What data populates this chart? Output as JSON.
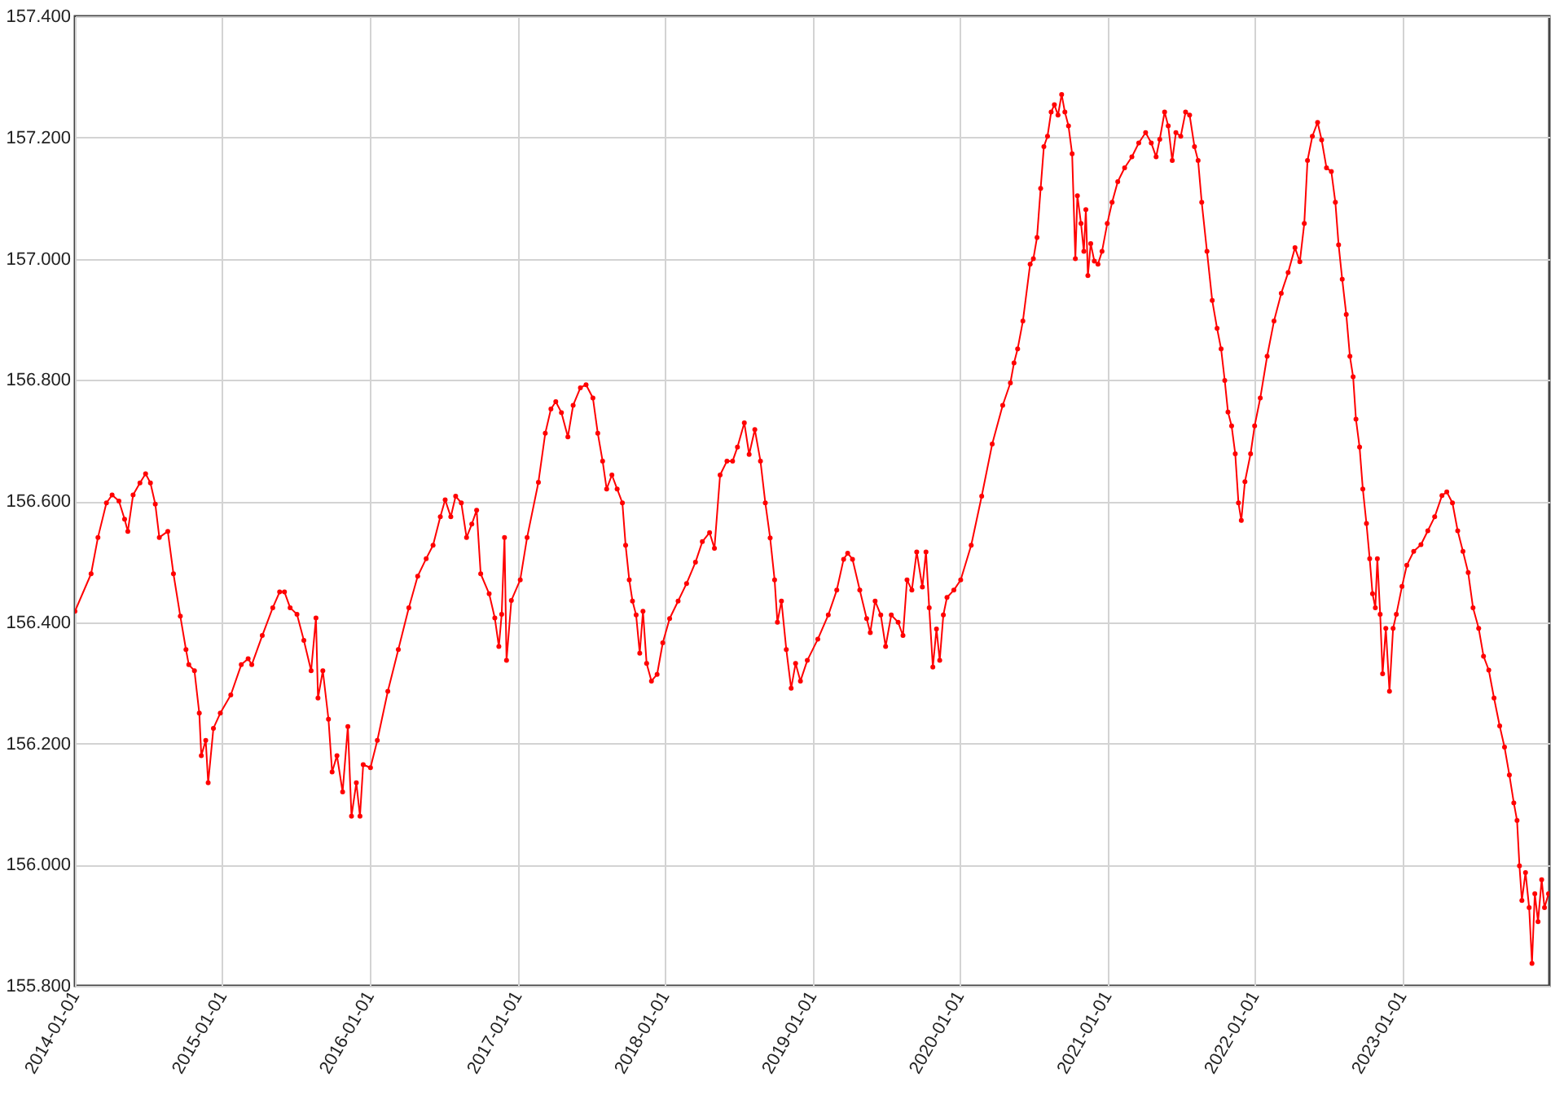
{
  "chart_data": {
    "type": "line",
    "marker": "circle",
    "grid": true,
    "xlim": [
      "2014-01-01",
      "2024-01-01"
    ],
    "xticks": [
      "2014-01-01",
      "2015-01-01",
      "2016-01-01",
      "2017-01-01",
      "2018-01-01",
      "2019-01-01",
      "2020-01-01",
      "2021-01-01",
      "2022-01-01",
      "2023-01-01"
    ],
    "ylim": [
      155.8,
      157.4
    ],
    "yticks": [
      {
        "value": 155.8,
        "label": "155.800"
      },
      {
        "value": 156,
        "label": "156.000"
      },
      {
        "value": 156.2,
        "label": "156.200"
      },
      {
        "value": 156.4,
        "label": "156.400"
      },
      {
        "value": 156.6,
        "label": "156.600"
      },
      {
        "value": 156.8,
        "label": "156.800"
      },
      {
        "value": 157,
        "label": "157.000"
      },
      {
        "value": 157.2,
        "label": "157.200"
      },
      {
        "value": 157.4,
        "label": "157.400"
      }
    ],
    "x": [
      "2014-01-01",
      "2014-02-10",
      "2014-02-27",
      "2014-03-20",
      "2014-04-03",
      "2014-04-20",
      "2014-05-04",
      "2014-05-12",
      "2014-05-25",
      "2014-06-11",
      "2014-06-25",
      "2014-07-07",
      "2014-07-19",
      "2014-07-29",
      "2014-08-19",
      "2014-09-02",
      "2014-09-19",
      "2014-10-03",
      "2014-10-10",
      "2014-10-24",
      "2014-11-05",
      "2014-11-10",
      "2014-11-21",
      "2014-11-27",
      "2014-12-10",
      "2014-12-27",
      "2015-01-22",
      "2015-02-17",
      "2015-03-06",
      "2015-03-15",
      "2015-04-10",
      "2015-05-06",
      "2015-05-23",
      "2015-06-04",
      "2015-06-18",
      "2015-07-05",
      "2015-07-22",
      "2015-08-09",
      "2015-08-21",
      "2015-08-26",
      "2015-09-07",
      "2015-09-21",
      "2015-09-30",
      "2015-10-12",
      "2015-10-26",
      "2015-11-08",
      "2015-11-17",
      "2015-11-29",
      "2015-12-08",
      "2015-12-16",
      "2016-01-03",
      "2016-01-20",
      "2016-02-15",
      "2016-03-12",
      "2016-04-07",
      "2016-04-29",
      "2016-05-20",
      "2016-06-06",
      "2016-06-24",
      "2016-07-06",
      "2016-07-20",
      "2016-08-01",
      "2016-08-15",
      "2016-08-28",
      "2016-09-10",
      "2016-09-22",
      "2016-10-02",
      "2016-10-23",
      "2016-11-06",
      "2016-11-16",
      "2016-11-23",
      "2016-11-30",
      "2016-12-05",
      "2016-12-17",
      "2017-01-08",
      "2017-01-25",
      "2017-02-22",
      "2017-03-11",
      "2017-03-25",
      "2017-04-06",
      "2017-04-20",
      "2017-05-06",
      "2017-05-19",
      "2017-06-06",
      "2017-06-20",
      "2017-07-07",
      "2017-07-19",
      "2017-07-31",
      "2017-08-10",
      "2017-08-23",
      "2017-09-05",
      "2017-09-18",
      "2017-09-26",
      "2017-10-05",
      "2017-10-13",
      "2017-10-22",
      "2017-10-31",
      "2017-11-08",
      "2017-11-17",
      "2017-11-29",
      "2017-12-13",
      "2017-12-27",
      "2018-01-13",
      "2018-02-03",
      "2018-02-24",
      "2018-03-18",
      "2018-04-04",
      "2018-04-22",
      "2018-05-04",
      "2018-05-18",
      "2018-06-04",
      "2018-06-18",
      "2018-06-30",
      "2018-07-17",
      "2018-07-29",
      "2018-08-12",
      "2018-08-26",
      "2018-09-07",
      "2018-09-19",
      "2018-09-30",
      "2018-10-07",
      "2018-10-17",
      "2018-10-29",
      "2018-11-10",
      "2018-11-21",
      "2018-12-03",
      "2018-12-20",
      "2019-01-15",
      "2019-02-10",
      "2019-03-03",
      "2019-03-20",
      "2019-03-30",
      "2019-04-11",
      "2019-04-29",
      "2019-05-16",
      "2019-05-25",
      "2019-06-06",
      "2019-06-20",
      "2019-07-02",
      "2019-07-16",
      "2019-08-02",
      "2019-08-14",
      "2019-08-24",
      "2019-09-05",
      "2019-09-17",
      "2019-10-01",
      "2019-10-10",
      "2019-10-18",
      "2019-10-27",
      "2019-11-05",
      "2019-11-13",
      "2019-11-22",
      "2019-12-01",
      "2019-12-18",
      "2020-01-04",
      "2020-01-30",
      "2020-02-25",
      "2020-03-22",
      "2020-04-17",
      "2020-05-06",
      "2020-05-15",
      "2020-05-24",
      "2020-06-06",
      "2020-06-24",
      "2020-07-02",
      "2020-07-11",
      "2020-07-20",
      "2020-07-28",
      "2020-08-06",
      "2020-08-15",
      "2020-08-23",
      "2020-09-01",
      "2020-09-10",
      "2020-09-18",
      "2020-09-27",
      "2020-10-06",
      "2020-10-14",
      "2020-10-19",
      "2020-10-28",
      "2020-11-04",
      "2020-11-09",
      "2020-11-14",
      "2020-11-21",
      "2020-11-30",
      "2020-12-09",
      "2020-12-19",
      "2021-01-01",
      "2021-01-13",
      "2021-01-27",
      "2021-02-13",
      "2021-03-03",
      "2021-03-20",
      "2021-04-06",
      "2021-04-20",
      "2021-05-02",
      "2021-05-11",
      "2021-05-23",
      "2021-06-01",
      "2021-06-11",
      "2021-06-20",
      "2021-07-02",
      "2021-07-14",
      "2021-07-24",
      "2021-08-05",
      "2021-08-14",
      "2021-08-23",
      "2021-09-05",
      "2021-09-18",
      "2021-09-30",
      "2021-10-10",
      "2021-10-19",
      "2021-10-27",
      "2021-11-05",
      "2021-11-14",
      "2021-11-22",
      "2021-11-29",
      "2021-12-08",
      "2021-12-22",
      "2022-01-01",
      "2022-01-15",
      "2022-02-01",
      "2022-02-18",
      "2022-03-08",
      "2022-03-25",
      "2022-04-11",
      "2022-04-23",
      "2022-05-04",
      "2022-05-12",
      "2022-05-24",
      "2022-06-06",
      "2022-06-16",
      "2022-06-28",
      "2022-07-10",
      "2022-07-20",
      "2022-07-28",
      "2022-08-06",
      "2022-08-16",
      "2022-08-25",
      "2022-09-02",
      "2022-09-09",
      "2022-09-18",
      "2022-09-26",
      "2022-10-05",
      "2022-10-13",
      "2022-10-20",
      "2022-10-27",
      "2022-11-01",
      "2022-11-08",
      "2022-11-14",
      "2022-11-22",
      "2022-12-01",
      "2022-12-10",
      "2022-12-18",
      "2023-01-01",
      "2023-01-13",
      "2023-01-30",
      "2023-02-17",
      "2023-03-06",
      "2023-03-23",
      "2023-04-10",
      "2023-04-22",
      "2023-05-06",
      "2023-05-19",
      "2023-06-01",
      "2023-06-14",
      "2023-06-26",
      "2023-07-10",
      "2023-07-22",
      "2023-08-04",
      "2023-08-17",
      "2023-08-31",
      "2023-09-12",
      "2023-09-24",
      "2023-10-05",
      "2023-10-13",
      "2023-10-19",
      "2023-10-25",
      "2023-11-03",
      "2023-11-12",
      "2023-11-19",
      "2023-11-26",
      "2023-12-04",
      "2023-12-13",
      "2023-12-20",
      "2023-12-30"
    ],
    "series": [
      {
        "color": "#ff0000",
        "values": [
          156.418,
          156.48,
          156.54,
          156.597,
          156.61,
          156.6,
          156.57,
          156.55,
          156.61,
          156.63,
          156.645,
          156.63,
          156.595,
          156.54,
          156.55,
          156.48,
          156.41,
          156.355,
          156.33,
          156.32,
          156.25,
          156.18,
          156.205,
          156.135,
          156.225,
          156.25,
          156.28,
          156.33,
          156.34,
          156.33,
          156.378,
          156.424,
          156.45,
          156.45,
          156.424,
          156.413,
          156.37,
          156.32,
          156.407,
          156.275,
          156.32,
          156.24,
          156.153,
          156.18,
          156.12,
          156.228,
          156.08,
          156.135,
          156.08,
          156.165,
          156.16,
          156.205,
          156.286,
          156.355,
          156.424,
          156.476,
          156.505,
          156.527,
          156.574,
          156.602,
          156.574,
          156.608,
          156.597,
          156.54,
          156.562,
          156.585,
          156.48,
          156.447,
          156.407,
          156.36,
          156.413,
          156.54,
          156.337,
          156.436,
          156.47,
          156.54,
          156.631,
          156.712,
          156.752,
          156.764,
          156.746,
          156.706,
          156.758,
          156.787,
          156.792,
          156.77,
          156.712,
          156.666,
          156.62,
          156.643,
          156.62,
          156.597,
          156.527,
          156.47,
          156.435,
          156.412,
          156.349,
          156.418,
          156.332,
          156.303,
          156.314,
          156.366,
          156.406,
          156.435,
          156.464,
          156.499,
          156.533,
          156.548,
          156.522,
          156.643,
          156.666,
          156.666,
          156.689,
          156.729,
          156.677,
          156.718,
          156.666,
          156.597,
          156.539,
          156.47,
          156.4,
          156.435,
          156.355,
          156.291,
          156.332,
          156.303,
          156.337,
          156.372,
          156.412,
          156.453,
          156.504,
          156.514,
          156.504,
          156.453,
          156.406,
          156.383,
          156.435,
          156.412,
          156.36,
          156.412,
          156.4,
          156.378,
          156.47,
          156.453,
          156.516,
          156.458,
          156.516,
          156.424,
          156.326,
          156.389,
          156.337,
          156.412,
          156.441,
          156.453,
          156.47,
          156.527,
          156.608,
          156.694,
          156.758,
          156.795,
          156.828,
          156.851,
          156.897,
          156.991,
          157.0,
          157.035,
          157.116,
          157.185,
          157.202,
          157.242,
          157.254,
          157.237,
          157.271,
          157.242,
          157.219,
          157.173,
          157.0,
          157.104,
          157.058,
          157.012,
          157.081,
          156.972,
          157.025,
          156.996,
          156.991,
          157.012,
          157.058,
          157.093,
          157.127,
          157.15,
          157.168,
          157.191,
          157.208,
          157.191,
          157.168,
          157.197,
          157.242,
          157.219,
          157.162,
          157.208,
          157.202,
          157.242,
          157.237,
          157.185,
          157.162,
          157.093,
          157.012,
          156.931,
          156.885,
          156.851,
          156.799,
          156.747,
          156.724,
          156.678,
          156.597,
          156.568,
          156.632,
          156.678,
          156.724,
          156.77,
          156.839,
          156.897,
          156.943,
          156.977,
          157.018,
          156.995,
          157.058,
          157.162,
          157.202,
          157.225,
          157.196,
          157.15,
          157.144,
          157.093,
          157.023,
          156.966,
          156.908,
          156.839,
          156.805,
          156.735,
          156.689,
          156.62,
          156.563,
          156.505,
          156.447,
          156.424,
          156.505,
          156.413,
          156.315,
          156.39,
          156.286,
          156.39,
          156.413,
          156.459,
          156.494,
          156.517,
          156.528,
          156.551,
          156.574,
          156.609,
          156.615,
          156.597,
          156.551,
          156.517,
          156.482,
          156.424,
          156.39,
          156.344,
          156.321,
          156.275,
          156.229,
          156.194,
          156.148,
          156.102,
          156.073,
          155.998,
          155.941,
          155.987,
          155.929,
          155.837,
          155.952,
          155.906,
          155.975,
          155.929,
          155.952
        ]
      }
    ]
  }
}
